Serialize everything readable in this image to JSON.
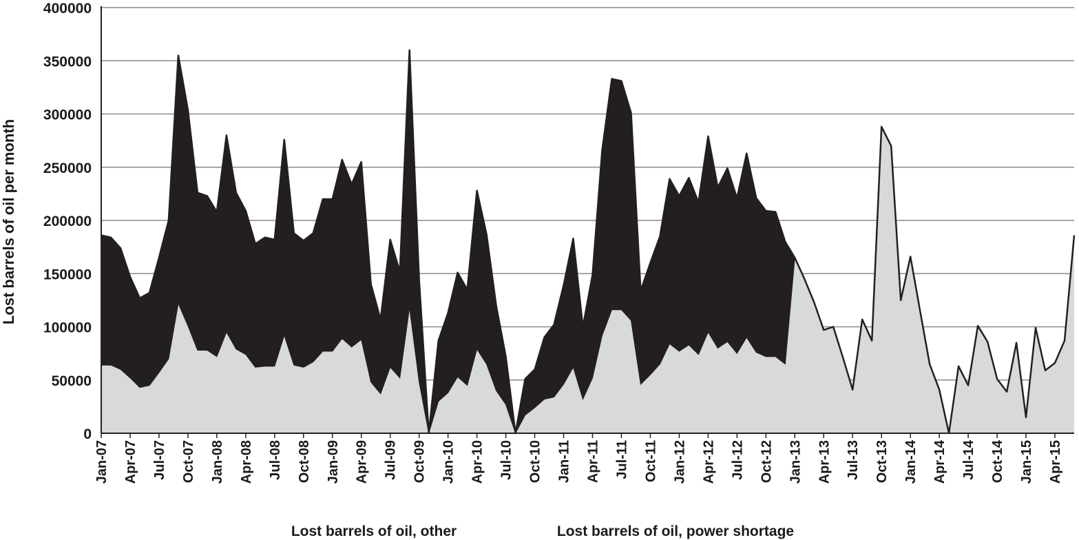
{
  "chart_data": {
    "type": "area",
    "title": "",
    "ylabel": "Lost barrels of oil per month",
    "xlabel": "",
    "ylim": [
      0,
      400000
    ],
    "yticks": [
      0,
      50000,
      100000,
      150000,
      200000,
      250000,
      300000,
      350000,
      400000
    ],
    "grid": "horizontal",
    "legend": "bottom",
    "x_start": "Jan-07",
    "x_tick_labels": [
      "Jan-07",
      "Apr-07",
      "Jul-07",
      "Oct-07",
      "Jan-08",
      "Apr-08",
      "Jul-08",
      "Oct-08",
      "Jan-09",
      "Apr-09",
      "Jul-09",
      "Oct-09",
      "Jan-10",
      "Apr-10",
      "Jul-10",
      "Oct-10",
      "Jan-11",
      "Apr-11",
      "Jul-11",
      "Oct-11",
      "Jan-12",
      "Apr-12",
      "Jul-12",
      "Oct-12",
      "Jan-13",
      "Apr-13",
      "Jul-13",
      "Oct-13",
      "Jan-14",
      "Apr-14",
      "Jul-14",
      "Oct-14",
      "Jan-15",
      "Apr-15"
    ],
    "series": [
      {
        "name": "Lost barrels of oil, other",
        "color": "#d7d9db",
        "values": [
          64000,
          64000,
          60000,
          52000,
          43000,
          45000,
          57000,
          70000,
          122000,
          101000,
          78000,
          78000,
          72000,
          95000,
          79000,
          74000,
          62000,
          63000,
          63000,
          92000,
          64000,
          62000,
          67000,
          77000,
          77000,
          89000,
          81000,
          88000,
          48000,
          37000,
          62000,
          52000,
          118000,
          48000,
          0,
          30000,
          38000,
          53000,
          45000,
          79000,
          65000,
          40000,
          27000,
          0,
          17000,
          24000,
          32000,
          34000,
          46000,
          62000,
          32000,
          52000,
          92000,
          116000,
          116000,
          106000,
          46000,
          55000,
          65000,
          84000,
          77000,
          83000,
          74000,
          95000,
          80000,
          86000,
          75000,
          90000,
          76000,
          72000,
          72000,
          65000,
          165000,
          145000,
          123000,
          97000,
          100000,
          71000,
          41000,
          107000,
          87000,
          288000,
          270000,
          125000,
          166000,
          115000,
          65000,
          41000,
          0,
          63000,
          45000,
          101000,
          86000,
          51000,
          39000,
          85000,
          15000,
          99000,
          59000,
          66000,
          87000,
          186000
        ]
      },
      {
        "name": "Lost barrels of oil, power shortage",
        "color": "#231f20",
        "values": [
          122000,
          120000,
          114000,
          95000,
          84000,
          87000,
          108000,
          130000,
          233000,
          203000,
          148000,
          145000,
          136000,
          185000,
          147000,
          135000,
          116000,
          121000,
          119000,
          184000,
          124000,
          119000,
          121000,
          143000,
          143000,
          168000,
          153000,
          167000,
          92000,
          70000,
          120000,
          100000,
          242000,
          96000,
          0,
          57000,
          75000,
          98000,
          90000,
          149000,
          122000,
          80000,
          45000,
          0,
          34000,
          36000,
          58000,
          68000,
          93000,
          121000,
          68000,
          97000,
          174000,
          217000,
          215000,
          195000,
          88000,
          105000,
          120000,
          155000,
          146000,
          157000,
          143000,
          184000,
          151000,
          163000,
          146000,
          173000,
          145000,
          137000,
          136000,
          115000,
          0,
          0,
          0,
          0,
          0,
          0,
          0,
          0,
          0,
          0,
          0,
          0,
          0,
          0,
          0,
          0,
          0,
          0,
          0,
          0,
          0,
          0,
          0,
          0,
          0,
          0,
          0,
          0,
          0,
          0
        ]
      }
    ]
  }
}
